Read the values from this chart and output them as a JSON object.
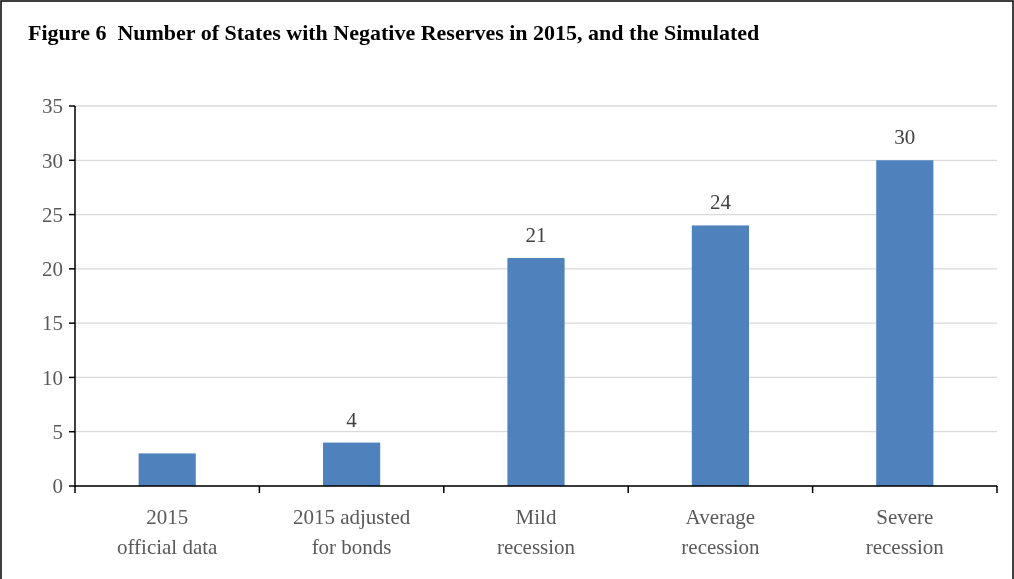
{
  "chart_data": {
    "type": "bar",
    "title": "Figure 6  Number of States with Negative Reserves in 2015, and the Simulated",
    "categories": [
      "2015\nofficial data",
      "2015 adjusted\nfor bonds",
      "Mild\nrecession",
      "Average\nrecession",
      "Severe\nrecession"
    ],
    "values": [
      3,
      4,
      21,
      24,
      30
    ],
    "color": "#4f81bd",
    "value_labels": [
      null,
      "4",
      "21",
      "24",
      "30"
    ],
    "ylim": [
      0,
      35
    ],
    "yticks": [
      0,
      5,
      10,
      15,
      20,
      25,
      30,
      35
    ],
    "grid": "y"
  }
}
